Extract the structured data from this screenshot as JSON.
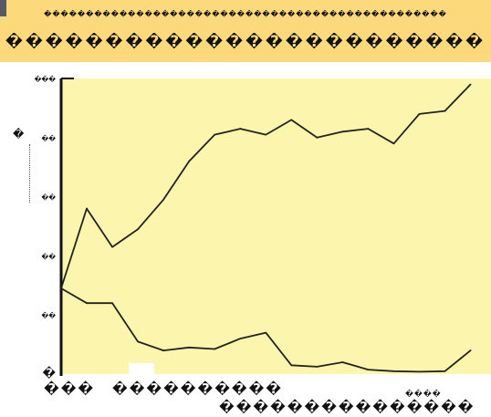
{
  "header": {
    "title_top": "������������������������������������������������",
    "title_main": "������������������������"
  },
  "footer": {
    "left": "���",
    "middle": "����������",
    "small": "����",
    "right": "���������������"
  },
  "colors": {
    "header_band": "#fcd97a",
    "plot_background": "#fcf5ae",
    "line": "#222222",
    "corner_mark": "#555a66"
  },
  "chart_data": {
    "type": "line",
    "title": "������������������������",
    "subtitle": "������������������������������������������������",
    "ylabel": "�",
    "xlabel": "",
    "ylim": [
      0,
      100
    ],
    "y_ticks": [
      {
        "value": 100,
        "label": "���"
      },
      {
        "value": 80,
        "label": "��"
      },
      {
        "value": 60,
        "label": "��"
      },
      {
        "value": 40,
        "label": "��"
      },
      {
        "value": 20,
        "label": "��"
      },
      {
        "value": 0,
        "label": "�"
      }
    ],
    "x": [
      0,
      5,
      10,
      15,
      20,
      25,
      30,
      35,
      40,
      45,
      50,
      55,
      60,
      65,
      70,
      75,
      80
    ],
    "xlim": [
      0,
      84
    ],
    "grid": false,
    "series": [
      {
        "values": [
          29,
          56,
          43,
          49,
          59,
          72,
          81,
          83,
          81,
          86,
          80,
          82,
          83,
          78,
          88,
          89,
          98
        ]
      },
      {
        "values": [
          29,
          24,
          24,
          11,
          8,
          9,
          8.5,
          12,
          14,
          3,
          2.5,
          4,
          1.5,
          1,
          0.8,
          1,
          8
        ]
      }
    ]
  }
}
